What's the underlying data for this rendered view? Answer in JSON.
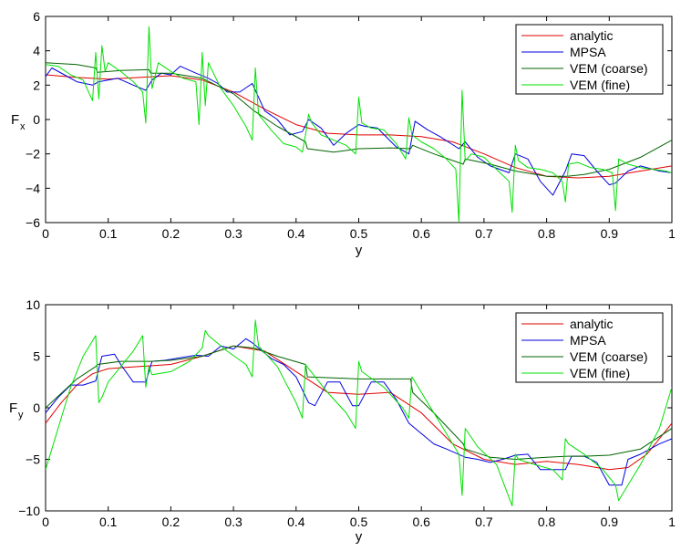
{
  "chart_data": [
    {
      "type": "line",
      "title": "",
      "xlabel": "y",
      "ylabel": "F",
      "ylabel_sub": "x",
      "xlim": [
        0,
        1
      ],
      "ylim": [
        -6,
        6
      ],
      "xticks": [
        0,
        0.1,
        0.2,
        0.3,
        0.4,
        0.5,
        0.6,
        0.7,
        0.8,
        0.9,
        1
      ],
      "xtick_labels": [
        "0",
        "0.1",
        "0.2",
        "0.3",
        "0.4",
        "0.5",
        "0.6",
        "0.7",
        "0.8",
        "0.9",
        "1"
      ],
      "yticks": [
        -6,
        -4,
        -2,
        0,
        2,
        4,
        6
      ],
      "ytick_labels": [
        "−6",
        "−4",
        "−2",
        "0",
        "2",
        "4",
        "6"
      ],
      "legend_position": "top-right",
      "series": [
        {
          "name": "analytic",
          "color": "#e00000",
          "x": [
            0,
            0.05,
            0.1,
            0.15,
            0.2,
            0.25,
            0.3,
            0.35,
            0.4,
            0.45,
            0.5,
            0.55,
            0.6,
            0.65,
            0.7,
            0.75,
            0.8,
            0.85,
            0.9,
            0.95,
            1
          ],
          "y": [
            2.6,
            2.45,
            2.35,
            2.45,
            2.55,
            2.3,
            1.6,
            0.6,
            -0.3,
            -0.8,
            -0.9,
            -0.9,
            -1.0,
            -1.3,
            -2.0,
            -2.8,
            -3.3,
            -3.4,
            -3.3,
            -3.0,
            -2.7
          ]
        },
        {
          "name": "MPSA",
          "color": "#0000e0",
          "x": [
            0,
            0.01,
            0.03,
            0.05,
            0.075,
            0.085,
            0.1,
            0.115,
            0.14,
            0.16,
            0.17,
            0.185,
            0.2,
            0.215,
            0.24,
            0.26,
            0.275,
            0.29,
            0.31,
            0.33,
            0.35,
            0.37,
            0.39,
            0.41,
            0.42,
            0.44,
            0.46,
            0.48,
            0.5,
            0.51,
            0.53,
            0.56,
            0.58,
            0.59,
            0.61,
            0.63,
            0.66,
            0.67,
            0.69,
            0.71,
            0.74,
            0.75,
            0.77,
            0.79,
            0.81,
            0.83,
            0.84,
            0.86,
            0.88,
            0.9,
            0.91,
            0.93,
            0.95,
            0.98,
            1
          ],
          "y": [
            2.5,
            3.0,
            2.6,
            2.2,
            2.0,
            2.2,
            2.3,
            2.4,
            2.0,
            1.7,
            2.3,
            2.7,
            2.6,
            3.1,
            2.7,
            2.4,
            2.1,
            1.6,
            1.6,
            2.1,
            0.5,
            0.0,
            -0.9,
            -0.7,
            0.0,
            -0.5,
            -1.5,
            -0.8,
            -0.3,
            -0.4,
            -0.5,
            -1.6,
            -2.0,
            -0.1,
            -0.6,
            -1.0,
            -1.7,
            -1.3,
            -2.2,
            -2.7,
            -3.1,
            -2.0,
            -2.3,
            -3.6,
            -4.4,
            -3.0,
            -2.0,
            -2.1,
            -3.0,
            -3.8,
            -3.7,
            -3.0,
            -2.7,
            -3.0,
            -3.1
          ]
        },
        {
          "name": "VEM (coarse)",
          "color": "#006400",
          "x": [
            0,
            0.05,
            0.08,
            0.083,
            0.12,
            0.165,
            0.168,
            0.2,
            0.25,
            0.3,
            0.333,
            0.37,
            0.415,
            0.418,
            0.46,
            0.5,
            0.55,
            0.583,
            0.586,
            0.62,
            0.667,
            0.67,
            0.71,
            0.75,
            0.8,
            0.833,
            0.86,
            0.9,
            0.95,
            1
          ],
          "y": [
            3.3,
            3.2,
            3.0,
            2.75,
            2.85,
            2.9,
            2.7,
            2.7,
            2.4,
            1.5,
            0.5,
            -0.4,
            -1.3,
            -1.7,
            -1.9,
            -1.7,
            -1.65,
            -1.7,
            -1.5,
            -2.0,
            -2.6,
            -2.3,
            -2.6,
            -3.0,
            -3.3,
            -3.3,
            -3.2,
            -2.9,
            -2.2,
            -1.2
          ]
        },
        {
          "name": "VEM (fine)",
          "color": "#00e000",
          "x": [
            0,
            0.02,
            0.04,
            0.06,
            0.075,
            0.08,
            0.085,
            0.09,
            0.095,
            0.1,
            0.12,
            0.14,
            0.155,
            0.16,
            0.165,
            0.17,
            0.18,
            0.2,
            0.22,
            0.24,
            0.245,
            0.25,
            0.255,
            0.26,
            0.28,
            0.3,
            0.32,
            0.33,
            0.335,
            0.34,
            0.36,
            0.38,
            0.4,
            0.41,
            0.415,
            0.42,
            0.425,
            0.44,
            0.46,
            0.48,
            0.495,
            0.5,
            0.505,
            0.52,
            0.54,
            0.56,
            0.575,
            0.58,
            0.585,
            0.6,
            0.62,
            0.64,
            0.655,
            0.66,
            0.665,
            0.67,
            0.68,
            0.7,
            0.72,
            0.74,
            0.745,
            0.75,
            0.755,
            0.77,
            0.79,
            0.81,
            0.825,
            0.83,
            0.835,
            0.85,
            0.87,
            0.89,
            0.905,
            0.91,
            0.915,
            0.93,
            0.95,
            0.97,
            0.99,
            1
          ],
          "y": [
            3.2,
            3.1,
            2.6,
            2.3,
            1.1,
            3.9,
            1.2,
            4.3,
            2.8,
            3.3,
            2.8,
            2.2,
            1.6,
            -0.2,
            5.4,
            1.8,
            3.3,
            2.8,
            2.4,
            2.2,
            -0.3,
            3.9,
            0.8,
            3.3,
            1.8,
            0.8,
            -0.4,
            -1.2,
            3.0,
            0.3,
            -0.6,
            -1.4,
            -1.6,
            -1.9,
            -0.9,
            0.3,
            -0.2,
            -0.9,
            -1.2,
            -1.5,
            -2.0,
            1.3,
            -0.2,
            -0.5,
            -0.6,
            -1.4,
            -2.3,
            0.1,
            -0.9,
            -1.3,
            -1.7,
            -2.3,
            -2.9,
            -6.0,
            1.7,
            -2.4,
            -2.0,
            -2.2,
            -2.9,
            -3.6,
            -5.4,
            -1.5,
            -2.4,
            -2.8,
            -2.9,
            -3.1,
            -3.6,
            -4.8,
            -2.6,
            -2.5,
            -2.8,
            -2.9,
            -3.1,
            -5.3,
            -2.3,
            -2.6,
            -2.8,
            -2.9,
            -3.0,
            -3.1
          ]
        }
      ]
    },
    {
      "type": "line",
      "title": "",
      "xlabel": "y",
      "ylabel": "F",
      "ylabel_sub": "y",
      "xlim": [
        0,
        1
      ],
      "ylim": [
        -10,
        10
      ],
      "xticks": [
        0,
        0.1,
        0.2,
        0.3,
        0.4,
        0.5,
        0.6,
        0.7,
        0.8,
        0.9,
        1
      ],
      "xtick_labels": [
        "0",
        "0.1",
        "0.2",
        "0.3",
        "0.4",
        "0.5",
        "0.6",
        "0.7",
        "0.8",
        "0.9",
        "1"
      ],
      "yticks": [
        -10,
        -5,
        0,
        5,
        10
      ],
      "ytick_labels": [
        "−10",
        "−5",
        "0",
        "5",
        "10"
      ],
      "legend_position": "top-right",
      "series": [
        {
          "name": "analytic",
          "color": "#e00000",
          "x": [
            0,
            0.025,
            0.05,
            0.075,
            0.1,
            0.15,
            0.2,
            0.25,
            0.3,
            0.35,
            0.4,
            0.45,
            0.5,
            0.55,
            0.6,
            0.65,
            0.7,
            0.75,
            0.8,
            0.85,
            0.9,
            0.93,
            0.96,
            1
          ],
          "y": [
            -1.5,
            0.5,
            2.2,
            3.3,
            3.8,
            4.0,
            4.2,
            5.0,
            6.0,
            5.5,
            3.5,
            1.5,
            1.3,
            1.5,
            -0.5,
            -3.5,
            -5.0,
            -5.5,
            -5.2,
            -5.5,
            -6.0,
            -5.8,
            -4.5,
            -1.5
          ]
        },
        {
          "name": "MPSA",
          "color": "#0000e0",
          "x": [
            0,
            0.02,
            0.04,
            0.06,
            0.08,
            0.09,
            0.11,
            0.12,
            0.14,
            0.16,
            0.17,
            0.19,
            0.21,
            0.24,
            0.26,
            0.28,
            0.3,
            0.32,
            0.33,
            0.36,
            0.38,
            0.4,
            0.42,
            0.43,
            0.45,
            0.47,
            0.49,
            0.5,
            0.52,
            0.54,
            0.56,
            0.58,
            0.6,
            0.62,
            0.64,
            0.67,
            0.69,
            0.71,
            0.73,
            0.75,
            0.77,
            0.79,
            0.81,
            0.83,
            0.84,
            0.86,
            0.88,
            0.9,
            0.92,
            0.93,
            0.95,
            0.98,
            1
          ],
          "y": [
            -0.5,
            1.0,
            2.2,
            2.2,
            2.6,
            5.0,
            5.2,
            4.2,
            2.5,
            2.5,
            4.5,
            4.6,
            4.8,
            5.1,
            5.0,
            6.0,
            5.7,
            6.7,
            6.3,
            4.8,
            4.2,
            3.0,
            0.5,
            0.2,
            2.5,
            2.5,
            0.2,
            0.2,
            2.5,
            2.5,
            0.8,
            -1.5,
            -2.5,
            -3.5,
            -4.0,
            -4.8,
            -5.0,
            -5.3,
            -5.0,
            -4.6,
            -4.5,
            -6.0,
            -6.0,
            -6.0,
            -4.7,
            -4.7,
            -5.3,
            -7.5,
            -7.5,
            -5.0,
            -4.5,
            -3.5,
            -3.0
          ]
        },
        {
          "name": "VEM (coarse)",
          "color": "#006400",
          "x": [
            0,
            0.05,
            0.08,
            0.083,
            0.12,
            0.165,
            0.168,
            0.2,
            0.25,
            0.3,
            0.333,
            0.37,
            0.415,
            0.418,
            0.46,
            0.5,
            0.55,
            0.583,
            0.586,
            0.62,
            0.667,
            0.67,
            0.71,
            0.75,
            0.8,
            0.833,
            0.86,
            0.9,
            0.95,
            1
          ],
          "y": [
            0.0,
            2.8,
            4.0,
            4.2,
            4.5,
            4.5,
            4.5,
            4.6,
            5.0,
            6.0,
            5.8,
            5.0,
            4.2,
            3.0,
            2.9,
            2.8,
            2.8,
            2.8,
            1.5,
            -0.5,
            -3.5,
            -4.0,
            -4.8,
            -5.0,
            -4.8,
            -4.7,
            -4.7,
            -4.6,
            -4.0,
            -2.0
          ]
        },
        {
          "name": "VEM (fine)",
          "color": "#00e000",
          "x": [
            0,
            0.01,
            0.02,
            0.04,
            0.06,
            0.08,
            0.085,
            0.09,
            0.1,
            0.12,
            0.14,
            0.155,
            0.16,
            0.165,
            0.17,
            0.2,
            0.23,
            0.25,
            0.255,
            0.26,
            0.29,
            0.32,
            0.33,
            0.335,
            0.34,
            0.37,
            0.4,
            0.41,
            0.415,
            0.42,
            0.45,
            0.48,
            0.495,
            0.5,
            0.505,
            0.54,
            0.57,
            0.58,
            0.585,
            0.6,
            0.63,
            0.66,
            0.665,
            0.67,
            0.69,
            0.72,
            0.745,
            0.75,
            0.755,
            0.78,
            0.81,
            0.825,
            0.83,
            0.835,
            0.86,
            0.89,
            0.91,
            0.915,
            0.92,
            0.95,
            0.98,
            1
          ],
          "y": [
            -6.0,
            -4.0,
            -2.0,
            2.0,
            5.0,
            7.0,
            0.5,
            1.0,
            2.5,
            4.0,
            5.5,
            7.0,
            2.0,
            4.0,
            3.2,
            3.5,
            4.5,
            5.8,
            7.5,
            7.0,
            5.5,
            4.2,
            3.0,
            8.5,
            6.0,
            4.0,
            0.5,
            -1.0,
            4.2,
            3.8,
            1.5,
            -0.5,
            -2.0,
            4.5,
            3.5,
            2.0,
            0.0,
            -1.0,
            3.0,
            1.5,
            -1.5,
            -4.5,
            -8.5,
            -2.0,
            -3.8,
            -5.5,
            -9.5,
            -4.5,
            -5.0,
            -5.5,
            -6.0,
            -7.0,
            -3.0,
            -3.5,
            -4.5,
            -6.0,
            -7.5,
            -9.0,
            -8.5,
            -5.5,
            -2.0,
            2.0
          ]
        }
      ]
    }
  ]
}
